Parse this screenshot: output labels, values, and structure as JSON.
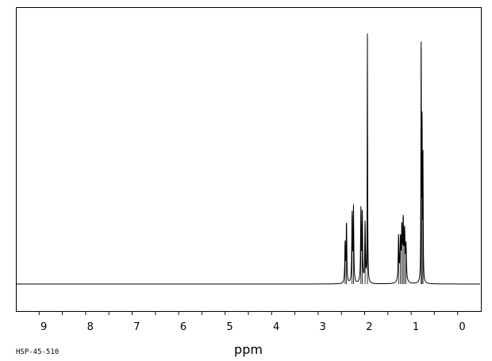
{
  "chart_data": {
    "type": "line",
    "title": "",
    "xlabel": "ppm",
    "ylabel": "",
    "xlim": [
      9.6,
      -0.4
    ],
    "x_reversed": true,
    "ylim": [
      0,
      1
    ],
    "grid": false,
    "sample_code": "HSP-45-510",
    "x_ticks": [
      9,
      8,
      7,
      6,
      5,
      4,
      3,
      2,
      1,
      0
    ],
    "minor_tick_step": 0.5,
    "series": [
      {
        "values": [
          {
            "x": 2.52,
            "h": 0.16,
            "w": 0.008
          },
          {
            "x": 2.49,
            "h": 0.24,
            "w": 0.008
          },
          {
            "x": 2.37,
            "h": 0.27,
            "w": 0.008
          },
          {
            "x": 2.34,
            "h": 0.3,
            "w": 0.008
          },
          {
            "x": 2.18,
            "h": 0.29,
            "w": 0.008
          },
          {
            "x": 2.15,
            "h": 0.27,
            "w": 0.008
          },
          {
            "x": 2.09,
            "h": 0.24,
            "w": 0.008
          },
          {
            "x": 2.04,
            "h": 0.98,
            "w": 0.005
          },
          {
            "x": 1.37,
            "h": 0.18,
            "w": 0.01
          },
          {
            "x": 1.33,
            "h": 0.16,
            "w": 0.01
          },
          {
            "x": 1.3,
            "h": 0.2,
            "w": 0.01
          },
          {
            "x": 1.27,
            "h": 0.23,
            "w": 0.01
          },
          {
            "x": 1.24,
            "h": 0.19,
            "w": 0.01
          },
          {
            "x": 1.21,
            "h": 0.14,
            "w": 0.01
          },
          {
            "x": 0.885,
            "h": 0.93,
            "w": 0.005
          },
          {
            "x": 0.865,
            "h": 0.68,
            "w": 0.005
          },
          {
            "x": 0.845,
            "h": 0.48,
            "w": 0.005
          }
        ]
      }
    ]
  }
}
